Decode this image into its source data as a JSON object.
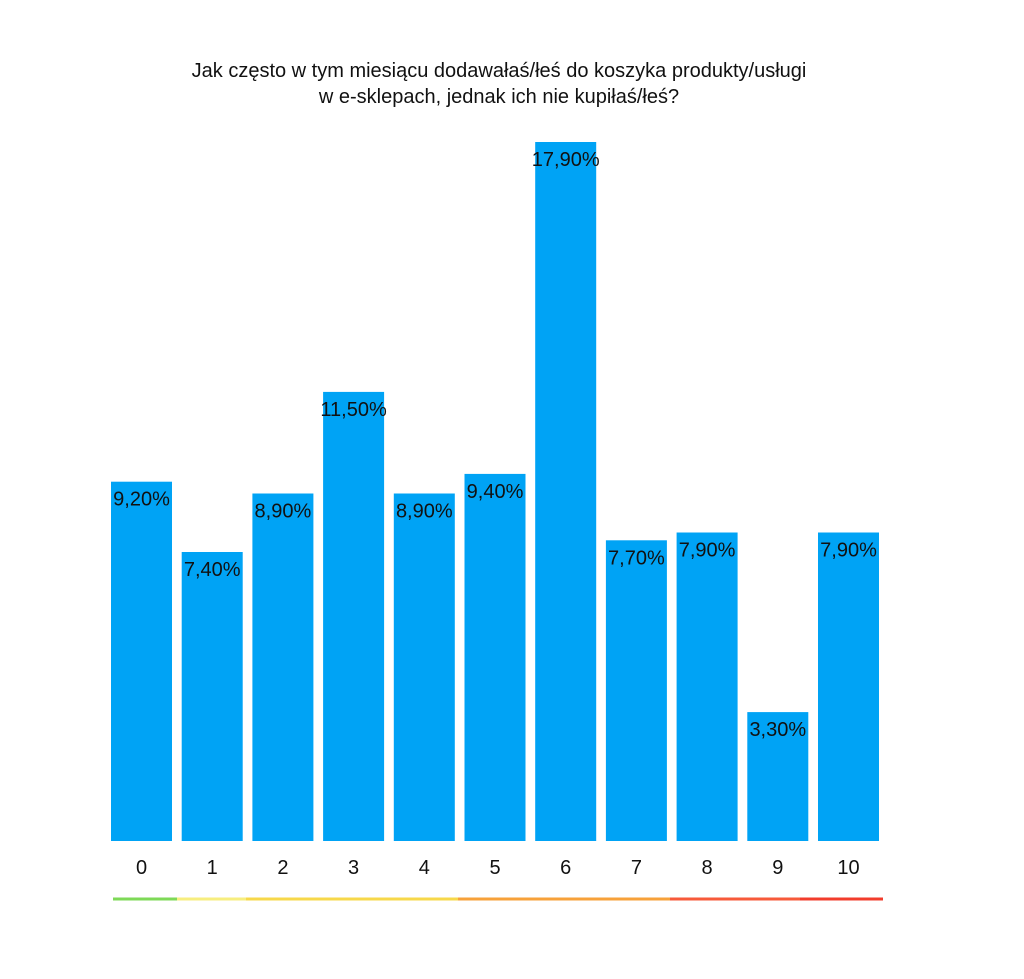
{
  "chart_data": {
    "type": "bar",
    "title_lines": [
      "Jak często w tym miesiącu dodawałaś/łeś do koszyka produkty/usługi",
      "w e-sklepach, jednak ich nie kupiłaś/łeś?"
    ],
    "categories": [
      "0",
      "1",
      "2",
      "3",
      "4",
      "5",
      "6",
      "7",
      "8",
      "9",
      "10"
    ],
    "values": [
      9.2,
      7.4,
      8.9,
      11.5,
      8.9,
      9.4,
      17.9,
      7.7,
      7.9,
      3.3,
      7.9
    ],
    "value_labels": [
      "9,20%",
      "7,40%",
      "8,90%",
      "11,50%",
      "8,90%",
      "9,40%",
      "17,90%",
      "7,70%",
      "7,90%",
      "3,30%",
      "7,90%"
    ],
    "ylim": [
      0,
      17.9
    ],
    "grid": false,
    "legend": "none",
    "bar_color": "#00a3f5",
    "scale_colors": [
      "#7ed957",
      "#f7ee7f",
      "#f7d84a",
      "#f7a13a",
      "#f75a3a",
      "#f23c2c"
    ]
  }
}
